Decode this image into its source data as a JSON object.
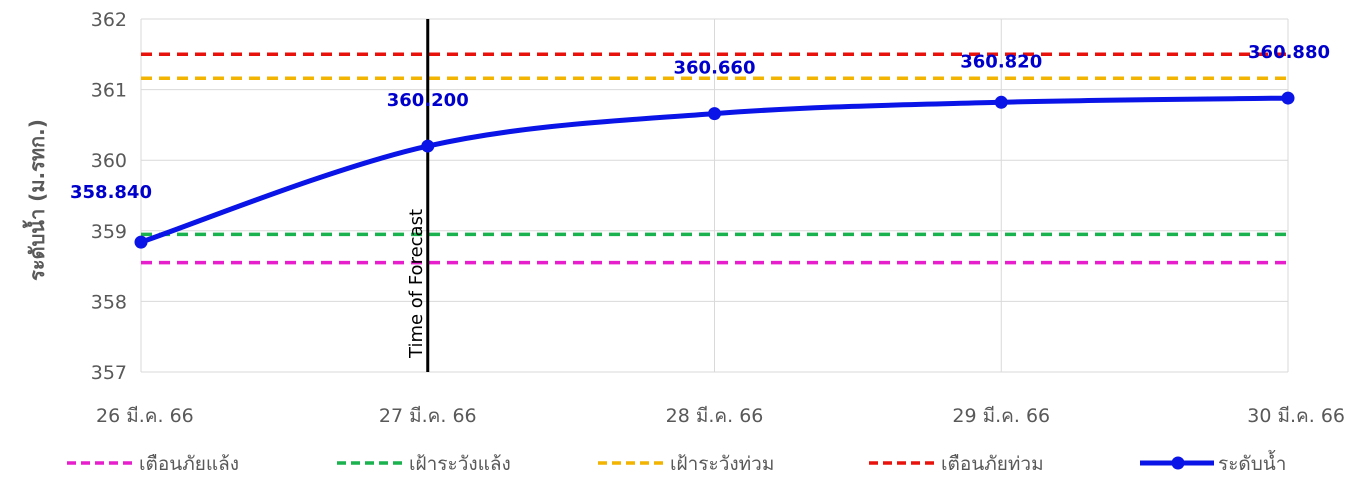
{
  "chart_data": {
    "type": "line",
    "ylabel": "ระดับน้ำ (ม.รทก.)",
    "ylim": [
      357,
      362
    ],
    "yticks": [
      357,
      358,
      359,
      360,
      361,
      362
    ],
    "categories": [
      "26 มี.ค. 66",
      "27 มี.ค. 66",
      "28 มี.ค. 66",
      "29 มี.ค. 66",
      "30 มี.ค. 66"
    ],
    "grid": true,
    "legend_position": "bottom",
    "annotation": {
      "label": "Time of Forecast",
      "x_index": 1
    },
    "thresholds": [
      {
        "name": "เตือนภัยแล้ง",
        "value": 358.55,
        "color": "#E61ECC"
      },
      {
        "name": "เฝ้าระวังแล้ง",
        "value": 358.95,
        "color": "#19B24F"
      },
      {
        "name": "เฝ้าระวังท่วม",
        "value": 361.16,
        "color": "#F2B400"
      },
      {
        "name": "เตือนภัยท่วม",
        "value": 361.5,
        "color": "#E8120C"
      }
    ],
    "series": [
      {
        "name": "ระดับน้ำ",
        "color": "#0A14E6",
        "values": [
          358.84,
          360.2,
          360.66,
          360.82,
          360.88
        ],
        "labels": [
          "358.840",
          "360.200",
          "360.660",
          "360.820",
          "360.880"
        ]
      }
    ]
  }
}
